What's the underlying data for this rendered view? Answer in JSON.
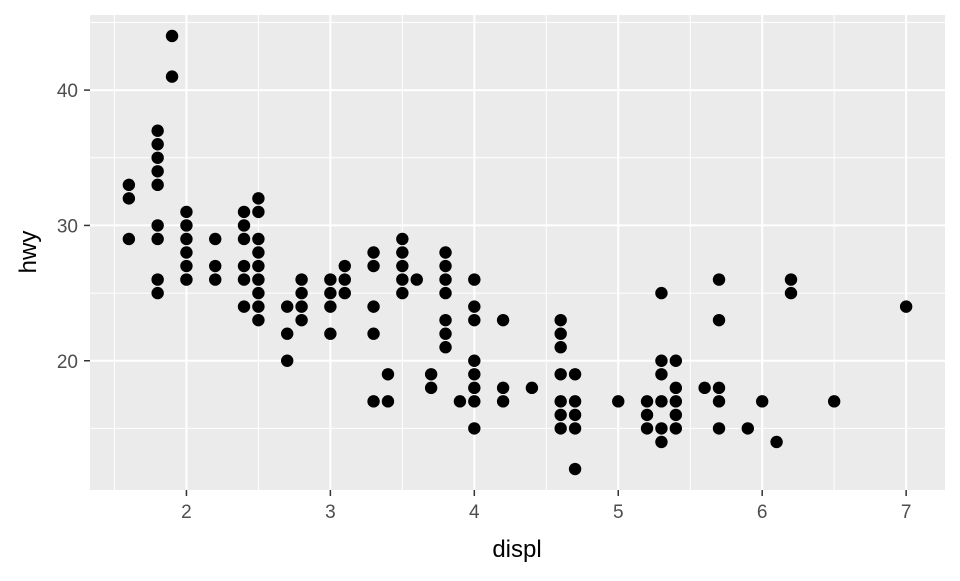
{
  "chart_data": {
    "type": "scatter",
    "title": "",
    "xlabel": "displ",
    "ylabel": "hwy",
    "xlim": [
      1.33,
      7.27
    ],
    "ylim": [
      10.45,
      45.55
    ],
    "xticks": [
      2,
      3,
      4,
      5,
      6,
      7
    ],
    "yticks": [
      20,
      30,
      40
    ],
    "grid": true,
    "background": "#EBEBEB",
    "point_color": "#000000",
    "points": [
      [
        1.6,
        33
      ],
      [
        1.6,
        32
      ],
      [
        1.6,
        29
      ],
      [
        1.8,
        37
      ],
      [
        1.8,
        36
      ],
      [
        1.8,
        35
      ],
      [
        1.8,
        34
      ],
      [
        1.8,
        33
      ],
      [
        1.8,
        30
      ],
      [
        1.8,
        29
      ],
      [
        1.8,
        26
      ],
      [
        1.8,
        25
      ],
      [
        1.9,
        44
      ],
      [
        1.9,
        41
      ],
      [
        2.0,
        31
      ],
      [
        2.0,
        30
      ],
      [
        2.0,
        29
      ],
      [
        2.0,
        28
      ],
      [
        2.0,
        27
      ],
      [
        2.0,
        26
      ],
      [
        2.2,
        29
      ],
      [
        2.2,
        27
      ],
      [
        2.2,
        26
      ],
      [
        2.4,
        31
      ],
      [
        2.4,
        30
      ],
      [
        2.4,
        29
      ],
      [
        2.4,
        27
      ],
      [
        2.4,
        26
      ],
      [
        2.4,
        24
      ],
      [
        2.5,
        32
      ],
      [
        2.5,
        31
      ],
      [
        2.5,
        29
      ],
      [
        2.5,
        28
      ],
      [
        2.5,
        27
      ],
      [
        2.5,
        26
      ],
      [
        2.5,
        25
      ],
      [
        2.5,
        24
      ],
      [
        2.5,
        23
      ],
      [
        2.7,
        24
      ],
      [
        2.7,
        22
      ],
      [
        2.7,
        20
      ],
      [
        2.8,
        26
      ],
      [
        2.8,
        25
      ],
      [
        2.8,
        24
      ],
      [
        2.8,
        23
      ],
      [
        3.0,
        26
      ],
      [
        3.0,
        25
      ],
      [
        3.0,
        24
      ],
      [
        3.0,
        22
      ],
      [
        3.1,
        27
      ],
      [
        3.1,
        26
      ],
      [
        3.1,
        25
      ],
      [
        3.3,
        28
      ],
      [
        3.3,
        27
      ],
      [
        3.3,
        24
      ],
      [
        3.3,
        22
      ],
      [
        3.3,
        17
      ],
      [
        3.4,
        19
      ],
      [
        3.4,
        17
      ],
      [
        3.5,
        29
      ],
      [
        3.5,
        28
      ],
      [
        3.5,
        27
      ],
      [
        3.5,
        26
      ],
      [
        3.5,
        25
      ],
      [
        3.6,
        26
      ],
      [
        3.7,
        19
      ],
      [
        3.7,
        18
      ],
      [
        3.8,
        28
      ],
      [
        3.8,
        27
      ],
      [
        3.8,
        26
      ],
      [
        3.8,
        25
      ],
      [
        3.8,
        23
      ],
      [
        3.8,
        22
      ],
      [
        3.8,
        21
      ],
      [
        3.9,
        17
      ],
      [
        4.0,
        26
      ],
      [
        4.0,
        24
      ],
      [
        4.0,
        23
      ],
      [
        4.0,
        20
      ],
      [
        4.0,
        19
      ],
      [
        4.0,
        18
      ],
      [
        4.0,
        17
      ],
      [
        4.0,
        15
      ],
      [
        4.2,
        23
      ],
      [
        4.2,
        18
      ],
      [
        4.2,
        17
      ],
      [
        4.4,
        18
      ],
      [
        4.6,
        23
      ],
      [
        4.6,
        22
      ],
      [
        4.6,
        21
      ],
      [
        4.6,
        19
      ],
      [
        4.6,
        17
      ],
      [
        4.6,
        16
      ],
      [
        4.6,
        15
      ],
      [
        4.7,
        19
      ],
      [
        4.7,
        17
      ],
      [
        4.7,
        16
      ],
      [
        4.7,
        15
      ],
      [
        4.7,
        12
      ],
      [
        5.0,
        17
      ],
      [
        5.2,
        17
      ],
      [
        5.2,
        16
      ],
      [
        5.2,
        15
      ],
      [
        5.3,
        25
      ],
      [
        5.3,
        20
      ],
      [
        5.3,
        19
      ],
      [
        5.3,
        17
      ],
      [
        5.3,
        15
      ],
      [
        5.3,
        14
      ],
      [
        5.4,
        20
      ],
      [
        5.4,
        18
      ],
      [
        5.4,
        17
      ],
      [
        5.4,
        16
      ],
      [
        5.4,
        15
      ],
      [
        5.6,
        18
      ],
      [
        5.7,
        26
      ],
      [
        5.7,
        23
      ],
      [
        5.7,
        18
      ],
      [
        5.7,
        17
      ],
      [
        5.7,
        15
      ],
      [
        5.9,
        15
      ],
      [
        6.0,
        17
      ],
      [
        6.1,
        14
      ],
      [
        6.2,
        26
      ],
      [
        6.2,
        25
      ],
      [
        6.5,
        17
      ],
      [
        7.0,
        24
      ]
    ]
  }
}
